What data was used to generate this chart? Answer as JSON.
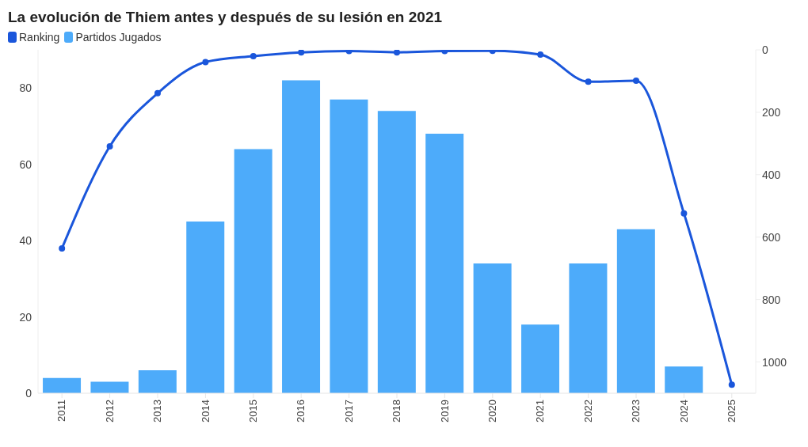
{
  "chart_data": {
    "type": "bar",
    "title": "La evolución de Thiem antes y después de su lesión en 2021",
    "categories": [
      "2011",
      "2012",
      "2013",
      "2014",
      "2015",
      "2016",
      "2017",
      "2018",
      "2019",
      "2020",
      "2021",
      "2022",
      "2023",
      "2024",
      "2025"
    ],
    "series": [
      {
        "name": "Ranking",
        "type": "line",
        "axis": "y2",
        "color": "#1a56db",
        "values": [
          636,
          309,
          139,
          39,
          20,
          8,
          4,
          8,
          4,
          3,
          15,
          102,
          99,
          524,
          1073
        ]
      },
      {
        "name": "Partidos Jugados",
        "color": "#4dabfa",
        "values": [
          4,
          3,
          6,
          45,
          64,
          82,
          77,
          74,
          68,
          34,
          18,
          34,
          43,
          7,
          null
        ]
      }
    ],
    "ylim": [
      0,
      90
    ],
    "yticks": [
      0,
      20,
      40,
      60,
      80
    ],
    "y2lim": [
      1100,
      0
    ],
    "y2ticks": [
      0,
      200,
      400,
      600,
      800,
      1000
    ],
    "legend": "top left",
    "marker": "circle"
  }
}
